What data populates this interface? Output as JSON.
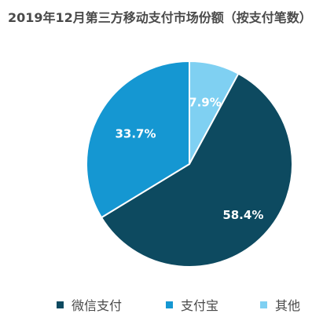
{
  "chart_data": {
    "type": "pie",
    "title": "2019年12月第三方移动支付市场份额（按支付笔数）",
    "categories": [
      "微信支付",
      "支付宝",
      "其他"
    ],
    "values": [
      58.4,
      33.7,
      7.9
    ],
    "value_labels": [
      "58.4%",
      "33.7%",
      "7.9%"
    ],
    "colors": [
      "#0d4a60",
      "#1597d2",
      "#7fd0f2"
    ],
    "legend_position": "bottom",
    "start": "top, clockwise order: 其他, 微信支付, 支付宝"
  },
  "legend": [
    {
      "label": "微信支付",
      "color": "#0d4a60"
    },
    {
      "label": "支付宝",
      "color": "#1597d2"
    },
    {
      "label": "其他",
      "color": "#7fd0f2"
    }
  ]
}
